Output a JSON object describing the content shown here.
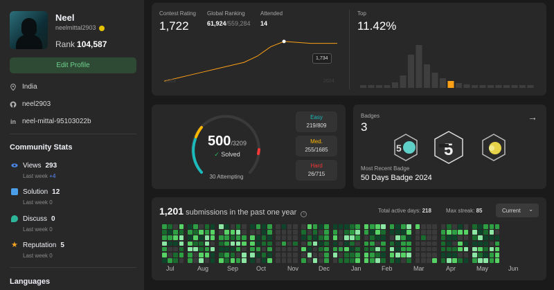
{
  "profile": {
    "name": "Neel",
    "username": "neelmittal2903",
    "rank_label": "Rank",
    "rank_value": "104,587",
    "edit_label": "Edit Profile",
    "location": "India",
    "github": "neel2903",
    "linkedin": "neel-mittal-95103022b"
  },
  "community": {
    "title": "Community Stats",
    "views_label": "Views",
    "views_value": "293",
    "views_week_label": "Last week",
    "views_week_value": "+4",
    "solution_label": "Solution",
    "solution_value": "12",
    "solution_week_label": "Last week",
    "solution_week_value": "0",
    "discuss_label": "Discuss",
    "discuss_value": "0",
    "discuss_week_label": "Last week",
    "discuss_week_value": "0",
    "reputation_label": "Reputation",
    "reputation_value": "5",
    "reputation_week_label": "Last week",
    "reputation_week_value": "0"
  },
  "languages_title": "Languages",
  "contest": {
    "rating_label": "Contest Rating",
    "rating_value": "1,722",
    "global_label": "Global Ranking",
    "global_value": "61,924",
    "global_total": "/559,284",
    "attended_label": "Attended",
    "attended_value": "14",
    "tooltip": "1,734",
    "year_start": "2023",
    "year_end": "2024",
    "top_label": "Top",
    "top_value": "11.42%"
  },
  "solved": {
    "count": "500",
    "total": "/3209",
    "solved_label": "Solved",
    "check_icon": "check-icon",
    "attempting": "30 Attempting",
    "easy_label": "Easy",
    "easy_value": "219/809",
    "medium_label": "Med.",
    "medium_value": "255/1685",
    "hard_label": "Hard",
    "hard_value": "26/715",
    "colors": {
      "easy": "#1cbaba",
      "medium": "#ffb700",
      "hard": "#f63737"
    }
  },
  "badges": {
    "title": "Badges",
    "count": "3",
    "recent_label": "Most Recent Badge",
    "recent_value": "50 Days Badge 2024",
    "arrow_icon": "arrow-right-icon"
  },
  "submissions": {
    "count": "1,201",
    "text": "submissions in the past one year",
    "active_label": "Total active days:",
    "active_value": "218",
    "streak_label": "Max streak:",
    "streak_value": "85",
    "dropdown": "Current",
    "months": [
      "Jul",
      "Aug",
      "Sep",
      "Oct",
      "Nov",
      "Dec",
      "Jan",
      "Feb",
      "Mar",
      "Apr",
      "May",
      "Jun"
    ]
  },
  "chart_data": {
    "type": "line",
    "title": "",
    "series": [
      {
        "values": [
          1480,
          1500,
          1520,
          1540,
          1560,
          1580,
          1600,
          1640,
          1700,
          1734,
          1728,
          1722,
          1722,
          1722
        ]
      }
    ],
    "xlabel": "",
    "ylabel": "",
    "x_ticks": [
      "2023",
      "2024"
    ],
    "highlight": {
      "value": 1734,
      "label": "1,734"
    }
  }
}
